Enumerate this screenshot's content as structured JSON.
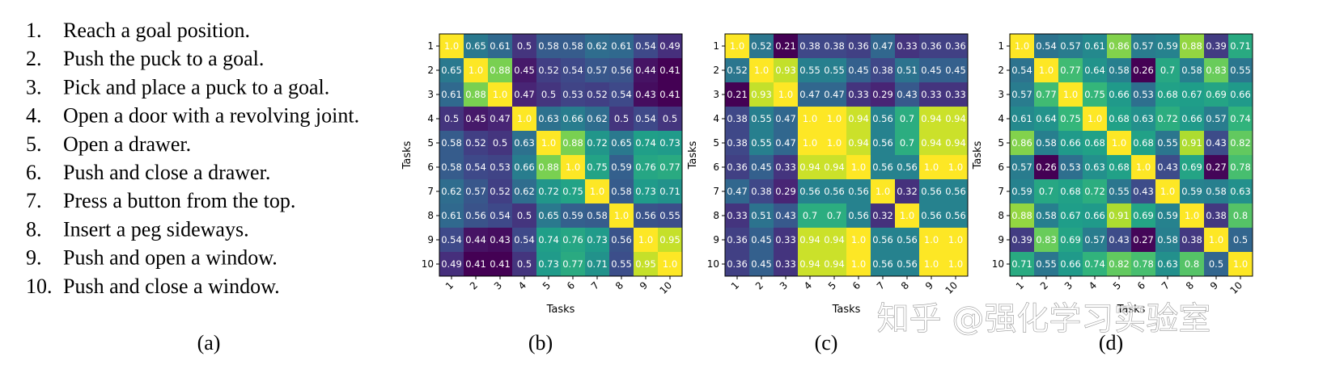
{
  "task_list": {
    "caption": "(a)",
    "items": [
      {
        "number": "1.",
        "text": "Reach a goal position."
      },
      {
        "number": "2.",
        "text": "Push the puck to a goal."
      },
      {
        "number": "3.",
        "text": "Pick and place a puck to a goal."
      },
      {
        "number": "4.",
        "text": "Open a door with a revolving joint."
      },
      {
        "number": "5.",
        "text": "Open a drawer."
      },
      {
        "number": "6.",
        "text": "Push and close a drawer."
      },
      {
        "number": "7.",
        "text": "Press a button from the top."
      },
      {
        "number": "8.",
        "text": "Insert a peg sideways."
      },
      {
        "number": "9.",
        "text": "Push and open a window."
      },
      {
        "number": "10.",
        "text": "Push and close a window."
      }
    ]
  },
  "watermark": "知乎 @强化学习实验室",
  "chart_data": [
    {
      "type": "heatmap",
      "caption": "(b)",
      "xlabel": "Tasks",
      "ylabel": "Tasks",
      "colormap": "viridis",
      "x_categories": [
        "1",
        "2",
        "3",
        "4",
        "5",
        "6",
        "7",
        "8",
        "9",
        "10"
      ],
      "y_categories": [
        "1",
        "2",
        "3",
        "4",
        "5",
        "6",
        "7",
        "8",
        "9",
        "10"
      ],
      "values": [
        [
          1.0,
          0.65,
          0.61,
          0.5,
          0.58,
          0.58,
          0.62,
          0.61,
          0.54,
          0.49
        ],
        [
          0.65,
          1.0,
          0.88,
          0.45,
          0.52,
          0.54,
          0.57,
          0.56,
          0.44,
          0.41
        ],
        [
          0.61,
          0.88,
          1.0,
          0.47,
          0.5,
          0.53,
          0.52,
          0.54,
          0.43,
          0.41
        ],
        [
          0.5,
          0.45,
          0.47,
          1.0,
          0.63,
          0.66,
          0.62,
          0.5,
          0.54,
          0.5
        ],
        [
          0.58,
          0.52,
          0.5,
          0.63,
          1.0,
          0.88,
          0.72,
          0.65,
          0.74,
          0.73
        ],
        [
          0.58,
          0.54,
          0.53,
          0.66,
          0.88,
          1.0,
          0.75,
          0.59,
          0.76,
          0.77
        ],
        [
          0.62,
          0.57,
          0.52,
          0.62,
          0.72,
          0.75,
          1.0,
          0.58,
          0.73,
          0.71
        ],
        [
          0.61,
          0.56,
          0.54,
          0.5,
          0.65,
          0.59,
          0.58,
          1.0,
          0.56,
          0.55
        ],
        [
          0.54,
          0.44,
          0.43,
          0.54,
          0.74,
          0.76,
          0.73,
          0.56,
          1.0,
          0.95
        ],
        [
          0.49,
          0.41,
          0.41,
          0.5,
          0.73,
          0.77,
          0.71,
          0.55,
          0.95,
          1.0
        ]
      ],
      "value_labels": [
        [
          "1.0",
          "0.65",
          "0.61",
          "0.5",
          "0.58",
          "0.58",
          "0.62",
          "0.61",
          "0.54",
          "0.49"
        ],
        [
          "0.65",
          "1.0",
          "0.88",
          "0.45",
          "0.52",
          "0.54",
          "0.57",
          "0.56",
          "0.44",
          "0.41"
        ],
        [
          "0.61",
          "0.88",
          "1.0",
          "0.47",
          "0.5",
          "0.53",
          "0.52",
          "0.54",
          "0.43",
          "0.41"
        ],
        [
          "0.5",
          "0.45",
          "0.47",
          "1.0",
          "0.63",
          "0.66",
          "0.62",
          "0.5",
          "0.54",
          "0.5"
        ],
        [
          "0.58",
          "0.52",
          "0.5",
          "0.63",
          "1.0",
          "0.88",
          "0.72",
          "0.65",
          "0.74",
          "0.73"
        ],
        [
          "0.58",
          "0.54",
          "0.53",
          "0.66",
          "0.88",
          "1.0",
          "0.75",
          "0.59",
          "0.76",
          "0.77"
        ],
        [
          "0.62",
          "0.57",
          "0.52",
          "0.62",
          "0.72",
          "0.75",
          "1.0",
          "0.58",
          "0.73",
          "0.71"
        ],
        [
          "0.61",
          "0.56",
          "0.54",
          "0.5",
          "0.65",
          "0.59",
          "0.58",
          "1.0",
          "0.56",
          "0.55"
        ],
        [
          "0.54",
          "0.44",
          "0.43",
          "0.54",
          "0.74",
          "0.76",
          "0.73",
          "0.56",
          "1.0",
          "0.95"
        ],
        [
          "0.49",
          "0.41",
          "0.41",
          "0.5",
          "0.73",
          "0.77",
          "0.71",
          "0.55",
          "0.95",
          "1.0"
        ]
      ]
    },
    {
      "type": "heatmap",
      "caption": "(c)",
      "xlabel": "Tasks",
      "ylabel": "Tasks",
      "colormap": "viridis",
      "x_categories": [
        "1",
        "2",
        "3",
        "4",
        "5",
        "6",
        "7",
        "8",
        "9",
        "10"
      ],
      "y_categories": [
        "1",
        "2",
        "3",
        "4",
        "5",
        "6",
        "7",
        "8",
        "9",
        "10"
      ],
      "values": [
        [
          1.0,
          0.52,
          0.21,
          0.38,
          0.38,
          0.36,
          0.47,
          0.33,
          0.36,
          0.36
        ],
        [
          0.52,
          1.0,
          0.93,
          0.55,
          0.55,
          0.45,
          0.38,
          0.51,
          0.45,
          0.45
        ],
        [
          0.21,
          0.93,
          1.0,
          0.47,
          0.47,
          0.33,
          0.29,
          0.43,
          0.33,
          0.33
        ],
        [
          0.38,
          0.55,
          0.47,
          1.0,
          1.0,
          0.94,
          0.56,
          0.7,
          0.94,
          0.94
        ],
        [
          0.38,
          0.55,
          0.47,
          1.0,
          1.0,
          0.94,
          0.56,
          0.7,
          0.94,
          0.94
        ],
        [
          0.36,
          0.45,
          0.33,
          0.94,
          0.94,
          1.0,
          0.56,
          0.56,
          1.0,
          1.0
        ],
        [
          0.47,
          0.38,
          0.29,
          0.56,
          0.56,
          0.56,
          1.0,
          0.32,
          0.56,
          0.56
        ],
        [
          0.33,
          0.51,
          0.43,
          0.7,
          0.7,
          0.56,
          0.32,
          1.0,
          0.56,
          0.56
        ],
        [
          0.36,
          0.45,
          0.33,
          0.94,
          0.94,
          1.0,
          0.56,
          0.56,
          1.0,
          1.0
        ],
        [
          0.36,
          0.45,
          0.33,
          0.94,
          0.94,
          1.0,
          0.56,
          0.56,
          1.0,
          1.0
        ]
      ],
      "value_labels": [
        [
          "1.0",
          "0.52",
          "0.21",
          "0.38",
          "0.38",
          "0.36",
          "0.47",
          "0.33",
          "0.36",
          "0.36"
        ],
        [
          "0.52",
          "1.0",
          "0.93",
          "0.55",
          "0.55",
          "0.45",
          "0.38",
          "0.51",
          "0.45",
          "0.45"
        ],
        [
          "0.21",
          "0.93",
          "1.0",
          "0.47",
          "0.47",
          "0.33",
          "0.29",
          "0.43",
          "0.33",
          "0.33"
        ],
        [
          "0.38",
          "0.55",
          "0.47",
          "1.0",
          "1.0",
          "0.94",
          "0.56",
          "0.7",
          "0.94",
          "0.94"
        ],
        [
          "0.38",
          "0.55",
          "0.47",
          "1.0",
          "1.0",
          "0.94",
          "0.56",
          "0.7",
          "0.94",
          "0.94"
        ],
        [
          "0.36",
          "0.45",
          "0.33",
          "0.94",
          "0.94",
          "1.0",
          "0.56",
          "0.56",
          "1.0",
          "1.0"
        ],
        [
          "0.47",
          "0.38",
          "0.29",
          "0.56",
          "0.56",
          "0.56",
          "1.0",
          "0.32",
          "0.56",
          "0.56"
        ],
        [
          "0.33",
          "0.51",
          "0.43",
          "0.7",
          "0.7",
          "0.56",
          "0.32",
          "1.0",
          "0.56",
          "0.56"
        ],
        [
          "0.36",
          "0.45",
          "0.33",
          "0.94",
          "0.94",
          "1.0",
          "0.56",
          "0.56",
          "1.0",
          "1.0"
        ],
        [
          "0.36",
          "0.45",
          "0.33",
          "0.94",
          "0.94",
          "1.0",
          "0.56",
          "0.56",
          "1.0",
          "1.0"
        ]
      ]
    },
    {
      "type": "heatmap",
      "caption": "(d)",
      "xlabel": "Tasks",
      "ylabel": "Tasks",
      "colormap": "viridis",
      "x_categories": [
        "1",
        "2",
        "3",
        "4",
        "5",
        "6",
        "7",
        "8",
        "9",
        "10"
      ],
      "y_categories": [
        "1",
        "2",
        "3",
        "4",
        "5",
        "6",
        "7",
        "8",
        "9",
        "10"
      ],
      "values": [
        [
          1.0,
          0.54,
          0.57,
          0.61,
          0.86,
          0.57,
          0.59,
          0.88,
          0.39,
          0.71
        ],
        [
          0.54,
          1.0,
          0.77,
          0.64,
          0.58,
          0.26,
          0.7,
          0.58,
          0.83,
          0.55
        ],
        [
          0.57,
          0.77,
          1.0,
          0.75,
          0.66,
          0.53,
          0.68,
          0.67,
          0.69,
          0.66
        ],
        [
          0.61,
          0.64,
          0.75,
          1.0,
          0.68,
          0.63,
          0.72,
          0.66,
          0.57,
          0.74
        ],
        [
          0.86,
          0.58,
          0.66,
          0.68,
          1.0,
          0.68,
          0.55,
          0.91,
          0.43,
          0.82
        ],
        [
          0.57,
          0.26,
          0.53,
          0.63,
          0.68,
          1.0,
          0.43,
          0.69,
          0.27,
          0.78
        ],
        [
          0.59,
          0.7,
          0.68,
          0.72,
          0.55,
          0.43,
          1.0,
          0.59,
          0.58,
          0.63
        ],
        [
          0.88,
          0.58,
          0.67,
          0.66,
          0.91,
          0.69,
          0.59,
          1.0,
          0.38,
          0.8
        ],
        [
          0.39,
          0.83,
          0.69,
          0.57,
          0.43,
          0.27,
          0.58,
          0.38,
          1.0,
          0.5
        ],
        [
          0.71,
          0.55,
          0.66,
          0.74,
          0.82,
          0.78,
          0.63,
          0.8,
          0.5,
          1.0
        ]
      ],
      "value_labels": [
        [
          "1.0",
          "0.54",
          "0.57",
          "0.61",
          "0.86",
          "0.57",
          "0.59",
          "0.88",
          "0.39",
          "0.71"
        ],
        [
          "0.54",
          "1.0",
          "0.77",
          "0.64",
          "0.58",
          "0.26",
          "0.7",
          "0.58",
          "0.83",
          "0.55"
        ],
        [
          "0.57",
          "0.77",
          "1.0",
          "0.75",
          "0.66",
          "0.53",
          "0.68",
          "0.67",
          "0.69",
          "0.66"
        ],
        [
          "0.61",
          "0.64",
          "0.75",
          "1.0",
          "0.68",
          "0.63",
          "0.72",
          "0.66",
          "0.57",
          "0.74"
        ],
        [
          "0.86",
          "0.58",
          "0.66",
          "0.68",
          "1.0",
          "0.68",
          "0.55",
          "0.91",
          "0.43",
          "0.82"
        ],
        [
          "0.57",
          "0.26",
          "0.53",
          "0.63",
          "0.68",
          "1.0",
          "0.43",
          "0.69",
          "0.27",
          "0.78"
        ],
        [
          "0.59",
          "0.7",
          "0.68",
          "0.72",
          "0.55",
          "0.43",
          "1.0",
          "0.59",
          "0.58",
          "0.63"
        ],
        [
          "0.88",
          "0.58",
          "0.67",
          "0.66",
          "0.91",
          "0.69",
          "0.59",
          "1.0",
          "0.38",
          "0.8"
        ],
        [
          "0.39",
          "0.83",
          "0.69",
          "0.57",
          "0.43",
          "0.27",
          "0.58",
          "0.38",
          "1.0",
          "0.5"
        ],
        [
          "0.71",
          "0.55",
          "0.66",
          "0.74",
          "0.82",
          "0.78",
          "0.63",
          "0.8",
          "0.5",
          "1.0"
        ]
      ]
    }
  ]
}
